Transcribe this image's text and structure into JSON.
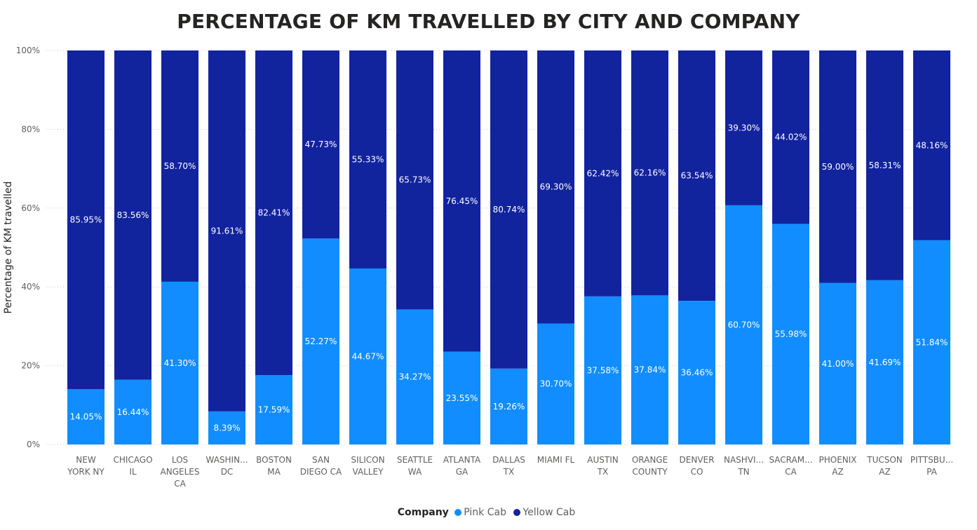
{
  "chart_data": {
    "type": "bar",
    "stacked": "percent",
    "title": "PERCENTAGE OF KM TRAVELLED BY CITY AND COMPANY",
    "xlabel": "",
    "ylabel": "Percentage of KM travelled",
    "ylim": [
      0,
      100
    ],
    "y_ticks": [
      "0%",
      "20%",
      "40%",
      "60%",
      "80%",
      "100%"
    ],
    "grid": true,
    "legend_position": "bottom-center",
    "legend_title": "Company",
    "categories": [
      [
        "NEW",
        "YORK NY"
      ],
      [
        "CHICAGO",
        "IL"
      ],
      [
        "LOS",
        "ANGELES",
        "CA"
      ],
      [
        "WASHIN...",
        "DC"
      ],
      [
        "BOSTON",
        "MA"
      ],
      [
        "SAN",
        "DIEGO CA"
      ],
      [
        "SILICON",
        "VALLEY"
      ],
      [
        "SEATTLE",
        "WA"
      ],
      [
        "ATLANTA",
        "GA"
      ],
      [
        "DALLAS",
        "TX"
      ],
      [
        "MIAMI FL"
      ],
      [
        "AUSTIN",
        "TX"
      ],
      [
        "ORANGE",
        "COUNTY"
      ],
      [
        "DENVER",
        "CO"
      ],
      [
        "NASHVI...",
        "TN"
      ],
      [
        "SACRAM...",
        "CA"
      ],
      [
        "PHOENIX",
        "AZ"
      ],
      [
        "TUCSON",
        "AZ"
      ],
      [
        "PITTSBU...",
        "PA"
      ]
    ],
    "series": [
      {
        "name": "Pink Cab",
        "color": "#118dff",
        "values": [
          14.05,
          16.44,
          41.3,
          8.39,
          17.59,
          52.27,
          44.67,
          34.27,
          23.55,
          19.26,
          30.7,
          37.58,
          37.84,
          36.46,
          60.7,
          55.98,
          41.0,
          41.69,
          51.84
        ],
        "labels": [
          "14.05%",
          "16.44%",
          "41.30%",
          "8.39%",
          "17.59%",
          "52.27%",
          "44.67%",
          "34.27%",
          "23.55%",
          "19.26%",
          "30.70%",
          "37.58%",
          "37.84%",
          "36.46%",
          "60.70%",
          "55.98%",
          "41.00%",
          "41.69%",
          "51.84%"
        ]
      },
      {
        "name": "Yellow Cab",
        "color": "#12239e",
        "values": [
          85.95,
          83.56,
          58.7,
          91.61,
          82.41,
          47.73,
          55.33,
          65.73,
          76.45,
          80.74,
          69.3,
          62.42,
          62.16,
          63.54,
          39.3,
          44.02,
          59.0,
          58.31,
          48.16
        ],
        "labels": [
          "85.95%",
          "83.56%",
          "58.70%",
          "91.61%",
          "82.41%",
          "47.73%",
          "55.33%",
          "65.73%",
          "76.45%",
          "80.74%",
          "69.30%",
          "62.42%",
          "62.16%",
          "63.54%",
          "39.30%",
          "44.02%",
          "59.00%",
          "58.31%",
          "48.16%"
        ]
      }
    ]
  }
}
